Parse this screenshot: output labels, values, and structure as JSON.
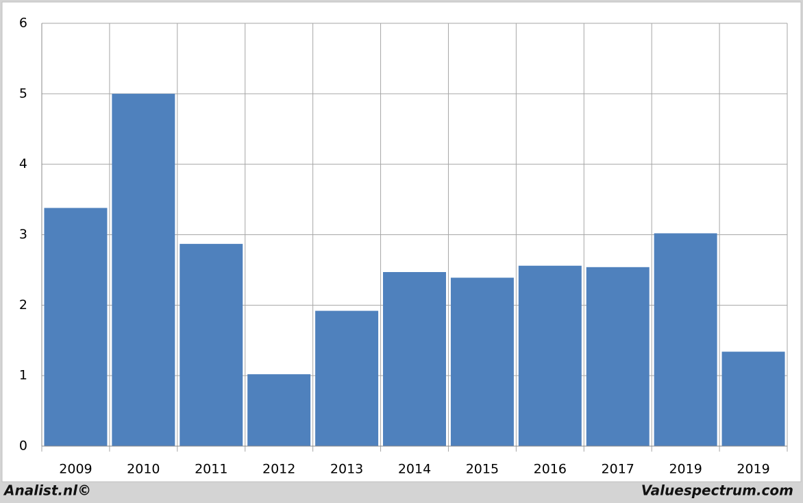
{
  "chart_data": {
    "type": "bar",
    "categories": [
      "2009",
      "2010",
      "2011",
      "2012",
      "2013",
      "2014",
      "2015",
      "2016",
      "2017",
      "2019",
      "2019"
    ],
    "values": [
      3.38,
      5.0,
      2.87,
      1.02,
      1.92,
      2.47,
      2.39,
      2.56,
      2.54,
      3.02,
      1.34
    ],
    "color": "#4f81bd",
    "ylim": [
      0,
      6
    ],
    "yticks": [
      0,
      1,
      2,
      3,
      4,
      5,
      6
    ],
    "grid": true
  },
  "footer": {
    "left": "Analist.nl©",
    "right": "Valuespectrum.com"
  }
}
